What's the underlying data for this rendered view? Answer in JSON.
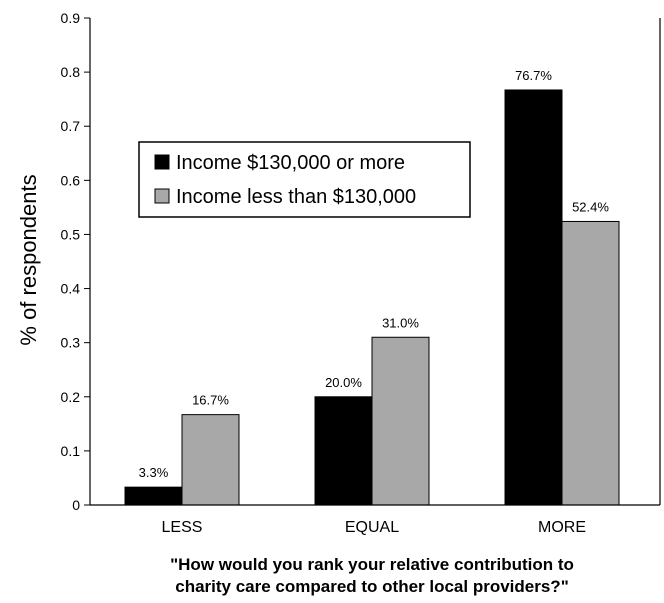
{
  "chart_data": {
    "type": "bar",
    "categories": [
      "LESS",
      "EQUAL",
      "MORE"
    ],
    "series": [
      {
        "name": "Income $130,000 or more",
        "color": "#000000",
        "values": [
          0.033,
          0.2,
          0.767
        ],
        "labels": [
          "3.3%",
          "20.0%",
          "76.7%"
        ]
      },
      {
        "name": "Income less than $130,000",
        "color": "#a8a8a8",
        "values": [
          0.167,
          0.31,
          0.524
        ],
        "labels": [
          "16.7%",
          "31.0%",
          "52.4%"
        ]
      }
    ],
    "ylabel": "% of respondents",
    "xlabel_lines": [
      "\"How would you rank your relative contribution to",
      "charity care compared to other local providers?\""
    ],
    "ylim": [
      0,
      0.9
    ],
    "yticks": [
      0,
      0.1,
      0.2,
      0.3,
      0.4,
      0.5,
      0.6,
      0.7,
      0.8,
      0.9
    ],
    "ytick_labels": [
      "0",
      "0.1",
      "0.2",
      "0.3",
      "0.4",
      "0.5",
      "0.6",
      "0.7",
      "0.8",
      "0.9"
    ],
    "grid": false,
    "legend_position": "upper-left"
  }
}
